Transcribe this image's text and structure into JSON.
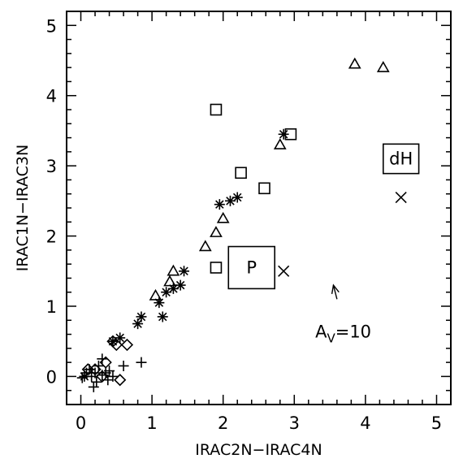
{
  "chart_data": {
    "type": "scatter",
    "title": "",
    "xlabel": "IRAC2N−IRAC4N",
    "ylabel": "IRAC1N−IRAC3N",
    "xlim": [
      -0.2,
      5.2
    ],
    "ylim": [
      -0.4,
      5.2
    ],
    "x_ticks": [
      "0",
      "1",
      "2",
      "3",
      "4",
      "5"
    ],
    "y_ticks": [
      "0",
      "1",
      "2",
      "3",
      "4",
      "5"
    ],
    "grid": false,
    "series": [
      {
        "marker": "plus",
        "points": [
          [
            0.02,
            -0.02
          ],
          [
            0.08,
            0.05
          ],
          [
            0.12,
            0.1
          ],
          [
            0.15,
            0.0
          ],
          [
            0.18,
            -0.15
          ],
          [
            0.2,
            0.05
          ],
          [
            0.22,
            -0.08
          ],
          [
            0.25,
            0.15
          ],
          [
            0.3,
            0.02
          ],
          [
            0.3,
            0.25
          ],
          [
            0.35,
            0.05
          ],
          [
            0.38,
            -0.05
          ],
          [
            0.4,
            0.08
          ],
          [
            0.45,
            0.0
          ],
          [
            0.6,
            0.15
          ],
          [
            0.85,
            0.2
          ]
        ]
      },
      {
        "marker": "diamond",
        "points": [
          [
            0.1,
            0.1
          ],
          [
            0.2,
            0.1
          ],
          [
            0.3,
            0.0
          ],
          [
            0.35,
            0.2
          ],
          [
            0.45,
            0.5
          ],
          [
            0.5,
            0.45
          ],
          [
            0.55,
            -0.05
          ],
          [
            0.65,
            0.45
          ]
        ]
      },
      {
        "marker": "asterisk",
        "points": [
          [
            0.05,
            0.0
          ],
          [
            0.45,
            0.5
          ],
          [
            0.55,
            0.55
          ],
          [
            0.8,
            0.75
          ],
          [
            0.85,
            0.85
          ],
          [
            1.1,
            1.05
          ],
          [
            1.15,
            0.85
          ],
          [
            1.2,
            1.2
          ],
          [
            1.3,
            1.25
          ],
          [
            1.4,
            1.3
          ],
          [
            1.45,
            1.5
          ],
          [
            1.95,
            2.45
          ],
          [
            2.1,
            2.5
          ],
          [
            2.2,
            2.55
          ],
          [
            2.85,
            3.45
          ]
        ]
      },
      {
        "marker": "triangle",
        "points": [
          [
            1.05,
            1.15
          ],
          [
            1.25,
            1.35
          ],
          [
            1.3,
            1.5
          ],
          [
            1.75,
            1.85
          ],
          [
            1.9,
            2.05
          ],
          [
            2.0,
            2.25
          ],
          [
            2.8,
            3.3
          ],
          [
            3.85,
            4.45
          ],
          [
            4.25,
            4.4
          ]
        ]
      },
      {
        "marker": "square",
        "points": [
          [
            1.9,
            3.8
          ],
          [
            2.25,
            2.9
          ],
          [
            2.58,
            2.68
          ],
          [
            2.95,
            3.45
          ],
          [
            1.9,
            1.55
          ]
        ]
      },
      {
        "marker": "cross",
        "points": [
          [
            2.85,
            1.5
          ],
          [
            4.5,
            2.55
          ]
        ]
      }
    ],
    "boxes": [
      {
        "label": "P",
        "x": 2.4,
        "y": 1.55,
        "w": 0.65,
        "h": 0.6
      },
      {
        "label": "dH",
        "x": 4.5,
        "y": 3.1,
        "w": 0.5,
        "h": 0.42
      }
    ],
    "reddening_vector": {
      "from": [
        3.6,
        1.1
      ],
      "to": [
        3.55,
        1.3
      ],
      "label_main": "A",
      "label_sub": "V",
      "label_value": "=10"
    }
  }
}
